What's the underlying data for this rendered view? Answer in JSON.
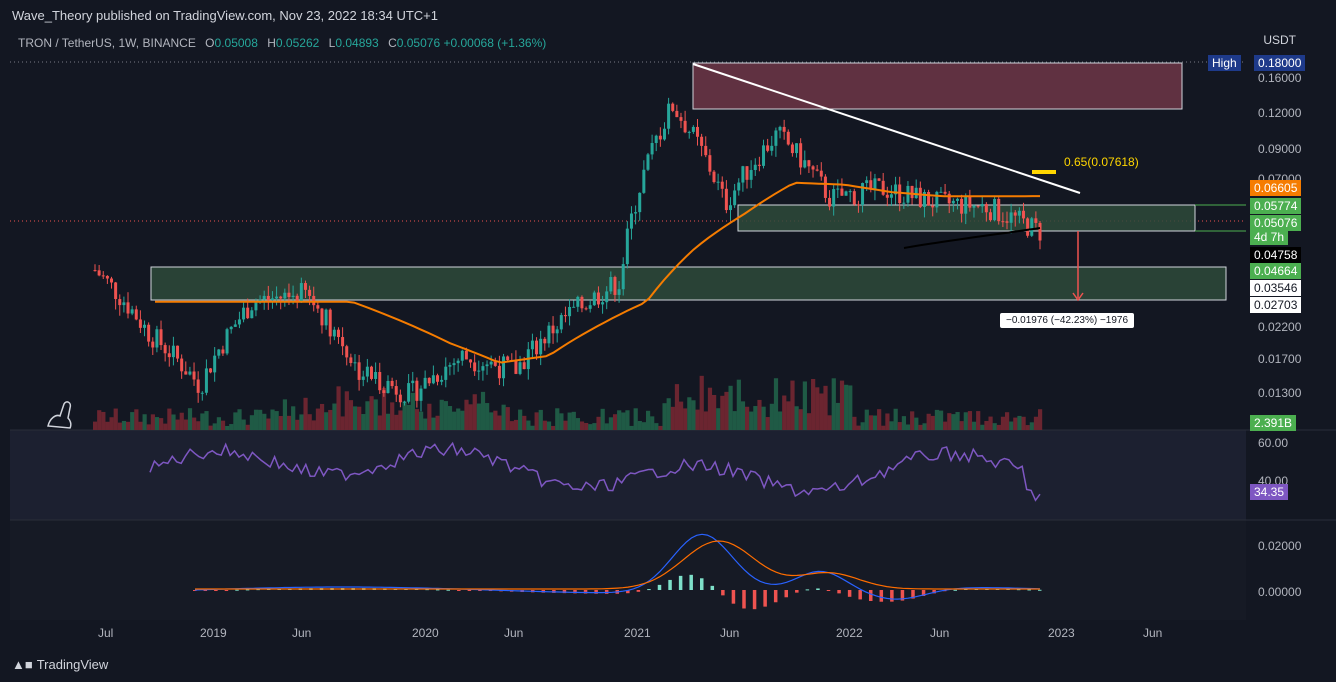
{
  "header": {
    "publisher": "Wave_Theory published on TradingView.com, Nov 23, 2022 18:34 UTC+1"
  },
  "legend": {
    "symbol": "TRON / TetherUS, 1W, BINANCE",
    "o_label": "O",
    "o": "0.05008",
    "h_label": "H",
    "h": "0.05262",
    "l_label": "L",
    "l": "0.04893",
    "c_label": "C",
    "c": "0.05076",
    "change": "+0.00068 (+1.36%)"
  },
  "price_axis": {
    "currency": "USDT",
    "high_label": "High",
    "high_value": "0.18000",
    "ticks": [
      "0.16000",
      "0.12000",
      "0.09000",
      "0.07000",
      "0.02200",
      "0.01700",
      "0.01300"
    ],
    "tags": {
      "ma": "0.06605",
      "zone_top": "0.05774",
      "last": "0.05076",
      "countdown": "4d 7h",
      "black_ma": "0.04758",
      "support_top": "0.04664",
      "support_mid": "0.03546",
      "support_low": "0.02703",
      "volume": "2.391B"
    }
  },
  "rsi": {
    "ticks": [
      "60.00",
      "40.00"
    ],
    "value": "34.35"
  },
  "macd": {
    "ticks": [
      "0.02000",
      "0.00000"
    ]
  },
  "time_axis": [
    "Jul",
    "2019",
    "Jun",
    "2020",
    "Jun",
    "2021",
    "Jun",
    "2022",
    "Jun",
    "2023",
    "Jun"
  ],
  "annotations": {
    "fib": "0.65(0.07618)",
    "measure": "−0.01976 (−42.23%) −1976"
  },
  "footer": {
    "brand": "TradingView"
  },
  "colors": {
    "up": "#26a69a",
    "down": "#ef5350",
    "ma": "#f57c00",
    "rsi": "#7e57c2",
    "macd": "#2962ff",
    "signal": "#ff6d00",
    "resistance_zone": "#7b3b4c",
    "support_zone": "#2e4a3a"
  },
  "chart_data": {
    "type": "line",
    "title": "TRON / TetherUS, 1W, BINANCE",
    "y_scale": "log",
    "ylim": [
      0.0115,
      0.18
    ],
    "x": [
      "2018-07",
      "2018-10",
      "2019-01",
      "2019-04",
      "2019-07",
      "2019-10",
      "2020-01",
      "2020-04",
      "2020-07",
      "2020-10",
      "2021-01",
      "2021-04",
      "2021-07",
      "2021-10",
      "2022-01",
      "2022-04",
      "2022-07",
      "2022-10",
      "2022-11"
    ],
    "series": [
      {
        "values": [
          0.038,
          0.024,
          0.016,
          0.03,
          0.032,
          0.018,
          0.015,
          0.02,
          0.018,
          0.027,
          0.035,
          0.13,
          0.062,
          0.105,
          0.065,
          0.07,
          0.063,
          0.061,
          0.05076
        ]
      }
    ],
    "ma_line": {
      "values": [
        0.03,
        0.03,
        0.03,
        0.03,
        0.03,
        0.026,
        0.022,
        0.019,
        0.02,
        0.025,
        0.03,
        0.045,
        0.058,
        0.073,
        0.072,
        0.068,
        0.066,
        0.066,
        0.06605
      ]
    },
    "zones": {
      "resistance": [
        0.12,
        0.18
      ],
      "support_upper": [
        0.0505,
        0.05774
      ],
      "support_lower": [
        0.02703,
        0.04664
      ]
    }
  }
}
